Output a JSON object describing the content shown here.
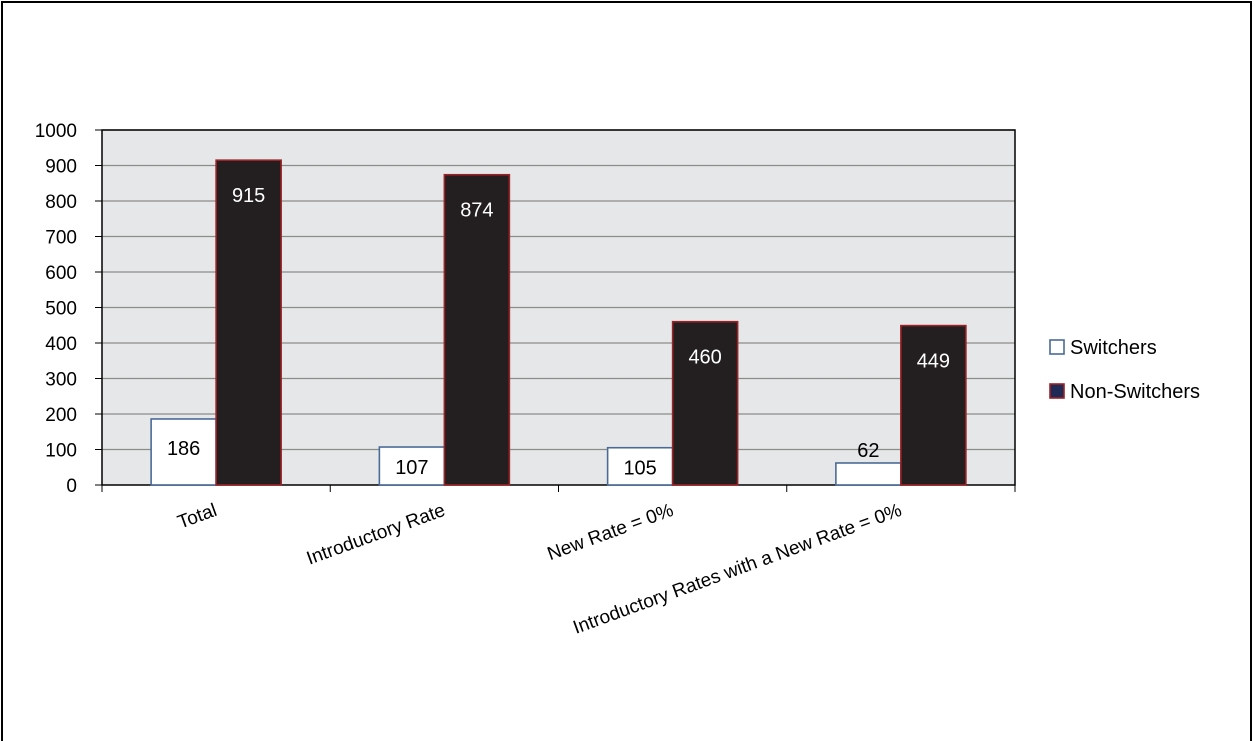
{
  "chart_data": {
    "type": "bar",
    "title": "",
    "xlabel": "",
    "ylabel": "",
    "ylim": [
      0,
      1000
    ],
    "yticks": [
      0,
      100,
      200,
      300,
      400,
      500,
      600,
      700,
      800,
      900,
      1000
    ],
    "grid": true,
    "legend_position": "right",
    "categories": [
      "Total",
      "Introductory Rate",
      "New Rate = 0%",
      "Introductory Rates with a New Rate = 0%"
    ],
    "series": [
      {
        "name": "Switchers",
        "values": [
          186,
          107,
          105,
          62
        ],
        "data_labels": [
          "186",
          "107",
          "105",
          "62"
        ],
        "color": "#ffffff",
        "edge": "#4a6b96"
      },
      {
        "name": "Non-Switchers",
        "values": [
          915,
          874,
          460,
          449
        ],
        "data_labels": [
          "915",
          "874",
          "460",
          "449"
        ],
        "color": "#231f20",
        "edge": "#9b2226"
      }
    ],
    "plot_background": "#e6e7e8"
  }
}
